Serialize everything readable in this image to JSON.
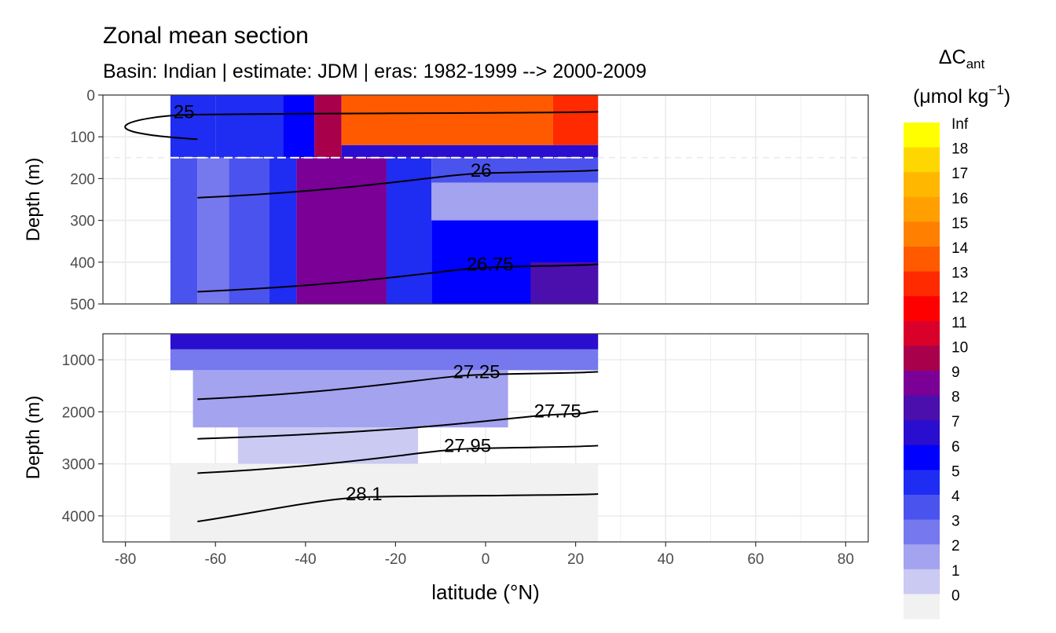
{
  "chart_data": {
    "type": "heatmap",
    "title": "Zonal mean section",
    "subtitle": "Basin: Indian | estimate: JDM  | eras: 1982-1999 --> 2000-2009",
    "xlabel": "latitude (°N)",
    "ylabel": "Depth (m)",
    "xlim": [
      -85,
      85
    ],
    "x_ticks": [
      -80,
      -60,
      -40,
      -20,
      0,
      20,
      40,
      60,
      80
    ],
    "data_lat_range": [
      -70,
      25
    ],
    "reference_depth_m": 150,
    "panels": [
      {
        "name": "upper",
        "ylim": [
          0,
          500
        ],
        "y_ticks": [
          0,
          100,
          200,
          300,
          400,
          500
        ],
        "cells": [
          {
            "lat": [
              -70,
              -60
            ],
            "depth": [
              0,
              150
            ],
            "value": 5
          },
          {
            "lat": [
              -60,
              -45
            ],
            "depth": [
              0,
              150
            ],
            "value": 5
          },
          {
            "lat": [
              -45,
              -38
            ],
            "depth": [
              0,
              150
            ],
            "value": 6
          },
          {
            "lat": [
              -38,
              -32
            ],
            "depth": [
              0,
              150
            ],
            "value": 10
          },
          {
            "lat": [
              -32,
              15
            ],
            "depth": [
              0,
              120
            ],
            "value": 14
          },
          {
            "lat": [
              15,
              25
            ],
            "depth": [
              0,
              120
            ],
            "value": 13
          },
          {
            "lat": [
              -32,
              25
            ],
            "depth": [
              120,
              150
            ],
            "value": 7
          },
          {
            "lat": [
              -70,
              -64
            ],
            "depth": [
              150,
              500
            ],
            "value": 4
          },
          {
            "lat": [
              -64,
              -57
            ],
            "depth": [
              150,
              500
            ],
            "value": 3
          },
          {
            "lat": [
              -57,
              -48
            ],
            "depth": [
              150,
              500
            ],
            "value": 4
          },
          {
            "lat": [
              -48,
              -42
            ],
            "depth": [
              150,
              500
            ],
            "value": 5
          },
          {
            "lat": [
              -42,
              -22
            ],
            "depth": [
              150,
              500
            ],
            "value": 9
          },
          {
            "lat": [
              -22,
              -12
            ],
            "depth": [
              150,
              500
            ],
            "value": 5
          },
          {
            "lat": [
              -12,
              25
            ],
            "depth": [
              150,
              210
            ],
            "value": 4
          },
          {
            "lat": [
              -12,
              25
            ],
            "depth": [
              210,
              300
            ],
            "value": 2
          },
          {
            "lat": [
              -12,
              25
            ],
            "depth": [
              300,
              500
            ],
            "value": 6
          },
          {
            "lat": [
              10,
              25
            ],
            "depth": [
              400,
              500
            ],
            "value": 8
          }
        ],
        "contour_labels": [
          {
            "text": "25",
            "lat": -67,
            "depth": 40
          },
          {
            "text": "26",
            "lat": -1,
            "depth": 180
          },
          {
            "text": "26.75",
            "lat": 1,
            "depth": 405
          }
        ]
      },
      {
        "name": "lower",
        "ylim": [
          500,
          4500
        ],
        "y_ticks": [
          1000,
          2000,
          3000,
          4000
        ],
        "cells": [
          {
            "lat": [
              -70,
              25
            ],
            "depth": [
              500,
              800
            ],
            "value": 7
          },
          {
            "lat": [
              -70,
              25
            ],
            "depth": [
              800,
              1200
            ],
            "value": 3
          },
          {
            "lat": [
              -65,
              5
            ],
            "depth": [
              1200,
              2300
            ],
            "value": 2
          },
          {
            "lat": [
              -55,
              -15
            ],
            "depth": [
              2300,
              3000
            ],
            "value": 1
          },
          {
            "lat": [
              -70,
              25
            ],
            "depth": [
              3000,
              4500
            ],
            "value": 0
          }
        ],
        "contour_labels": [
          {
            "text": "27.25",
            "lat": -2,
            "depth": 1230
          },
          {
            "text": "27.75",
            "lat": 16,
            "depth": 1990
          },
          {
            "text": "27.95",
            "lat": -4,
            "depth": 2650
          },
          {
            "text": "28.1",
            "lat": -27,
            "depth": 3580
          }
        ]
      }
    ],
    "legend": {
      "title": "ΔC",
      "title_subscript": "ant",
      "units": "(μmol kg",
      "units_sup": "−1",
      "units_close": ")",
      "placement": "right",
      "labels": [
        "Inf",
        "18",
        "17",
        "16",
        "15",
        "14",
        "13",
        "12",
        "11",
        "10",
        "9",
        "8",
        "7",
        "6",
        "5",
        "4",
        "3",
        "2",
        "1",
        "0"
      ],
      "colors": [
        "#FFFF00",
        "#FFD700",
        "#FFB700",
        "#FF9F00",
        "#FF8000",
        "#FF5A00",
        "#FF2A00",
        "#FF0000",
        "#D9002A",
        "#A8004B",
        "#7A0096",
        "#4B0FAE",
        "#2A0ECF",
        "#0000FF",
        "#1F2CF2",
        "#4B53EE",
        "#7678EE",
        "#A3A3F0",
        "#CACAF3",
        "#F1F1F1"
      ]
    }
  }
}
